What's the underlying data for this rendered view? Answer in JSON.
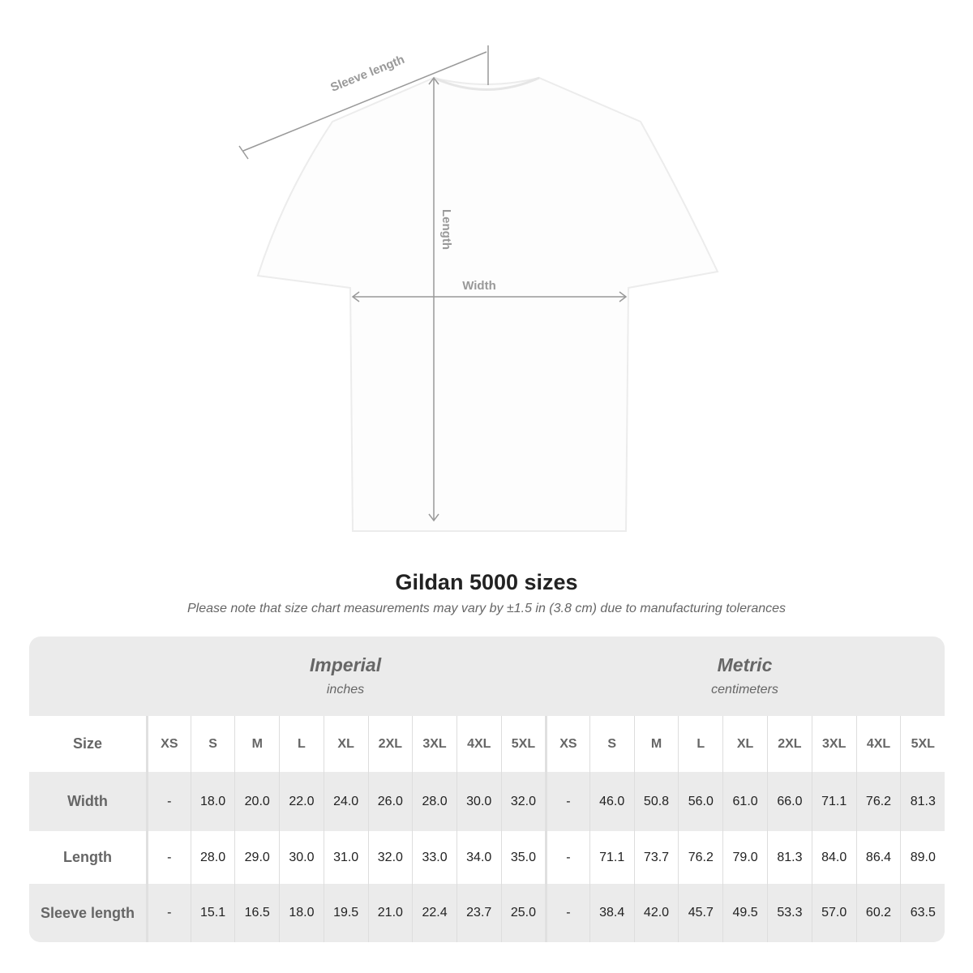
{
  "diagram": {
    "sleeve_label": "Sleeve length",
    "length_label": "Length",
    "width_label": "Width"
  },
  "title": "Gildan 5000 sizes",
  "note": "Please note that size chart measurements may vary by ±1.5 in (3.8 cm) due to manufacturing tolerances",
  "table": {
    "imperial": {
      "heading": "Imperial",
      "unit": "inches"
    },
    "metric": {
      "heading": "Metric",
      "unit": "centimeters"
    },
    "size_label": "Size",
    "sizes": [
      "XS",
      "S",
      "M",
      "L",
      "XL",
      "2XL",
      "3XL",
      "4XL",
      "5XL"
    ],
    "rows": [
      {
        "label": "Width",
        "imperial": [
          "-",
          "18.0",
          "20.0",
          "22.0",
          "24.0",
          "26.0",
          "28.0",
          "30.0",
          "32.0"
        ],
        "metric": [
          "-",
          "46.0",
          "50.8",
          "56.0",
          "61.0",
          "66.0",
          "71.1",
          "76.2",
          "81.3"
        ]
      },
      {
        "label": "Length",
        "imperial": [
          "-",
          "28.0",
          "29.0",
          "30.0",
          "31.0",
          "32.0",
          "33.0",
          "34.0",
          "35.0"
        ],
        "metric": [
          "-",
          "71.1",
          "73.7",
          "76.2",
          "79.0",
          "81.3",
          "84.0",
          "86.4",
          "89.0"
        ]
      },
      {
        "label": "Sleeve length",
        "imperial": [
          "-",
          "15.1",
          "16.5",
          "18.0",
          "19.5",
          "21.0",
          "22.4",
          "23.7",
          "25.0"
        ],
        "metric": [
          "-",
          "38.4",
          "42.0",
          "45.7",
          "49.5",
          "53.3",
          "57.0",
          "60.2",
          "63.5"
        ]
      }
    ]
  }
}
